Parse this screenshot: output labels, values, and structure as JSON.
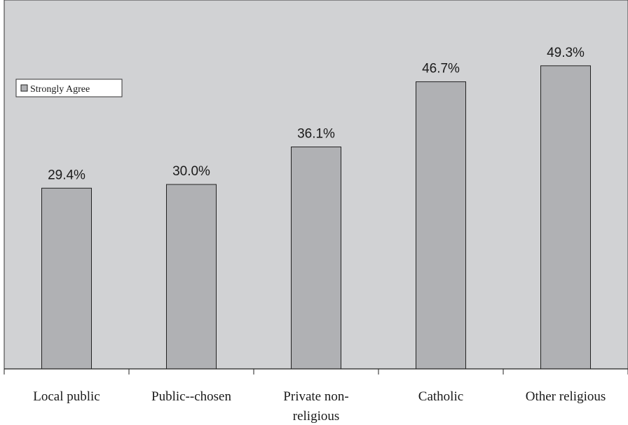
{
  "chart_data": {
    "type": "bar",
    "categories": [
      "Local public",
      "Public--chosen",
      "Private non-religious",
      "Catholic",
      "Other religious"
    ],
    "category_lines": [
      [
        "Local public"
      ],
      [
        "Public--chosen"
      ],
      [
        "Private non-",
        "religious"
      ],
      [
        "Catholic"
      ],
      [
        "Other religious"
      ]
    ],
    "series": [
      {
        "name": "Strongly Agree",
        "values": [
          29.4,
          30.0,
          36.1,
          46.7,
          49.3
        ],
        "labels": [
          "29.4%",
          "30.0%",
          "36.1%",
          "46.7%",
          "49.3%"
        ]
      }
    ],
    "ylim": [
      0,
      60
    ],
    "grid": false,
    "legend_position": "left",
    "colors": {
      "plot_bg": "#d1d2d4",
      "bar_fill": "#b0b1b4",
      "bar_stroke": "#222222"
    }
  }
}
